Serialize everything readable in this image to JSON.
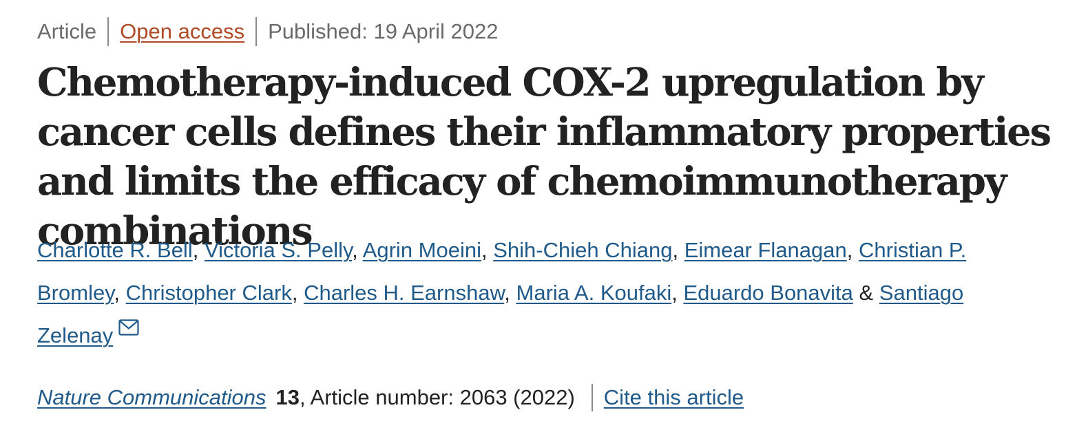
{
  "article": {
    "type": "Article",
    "access": "Open access",
    "published": "Published: 19 April 2022",
    "title": "Chemotherapy-induced COX-2 upregulation by cancer cells defines their inflammatory properties and limits the efficacy of chemoimmunotherapy combinations"
  },
  "authors": [
    "Charlotte R. Bell",
    "Victoria S. Pelly",
    "Agrin Moeini",
    "Shih-Chieh Chiang",
    "Eimear Flanagan",
    "Christian P. Bromley",
    "Christopher Clark",
    "Charles H. Earnshaw",
    "Maria A. Koufaki",
    "Eduardo Bonavita",
    "Santiago Zelenay"
  ],
  "authors_separator": ", ",
  "authors_last_separator": " & ",
  "icons": {
    "corresponding_author": "mail-icon"
  },
  "citation": {
    "journal": "Nature Communications",
    "volume": "13",
    "article_number": ", Article number: 2063 (2022)",
    "cite_label": "Cite this article"
  },
  "colors": {
    "link": "#1f5a8a",
    "open_access": "#b04a24",
    "meta_text": "#6a6a6a"
  }
}
